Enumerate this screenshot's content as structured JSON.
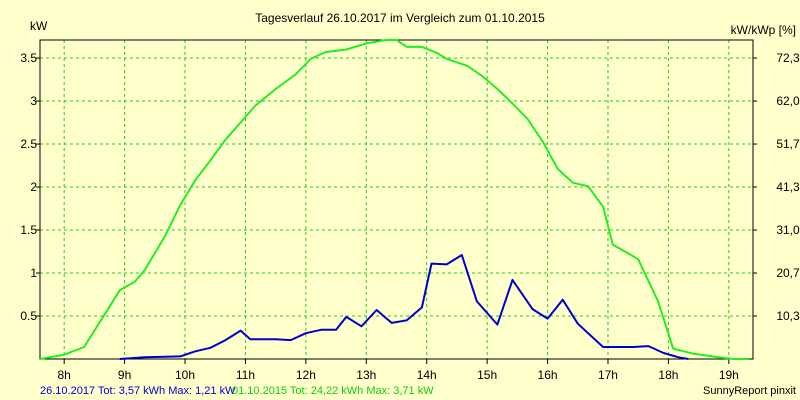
{
  "chart_data": {
    "type": "line",
    "title": "Tagesverlauf 26.10.2017 im Vergleich zum 01.10.2015",
    "ylabel_left": "kW",
    "ylabel_right": "kW/kWp [%]",
    "xlim": [
      7.6,
      19.4
    ],
    "ylim": [
      0,
      3.71
    ],
    "x_ticks": [
      {
        "x": 8,
        "label": "8h"
      },
      {
        "x": 9,
        "label": "9h"
      },
      {
        "x": 10,
        "label": "10h"
      },
      {
        "x": 11,
        "label": "11h"
      },
      {
        "x": 12,
        "label": "12h"
      },
      {
        "x": 13,
        "label": "13h"
      },
      {
        "x": 14,
        "label": "14h"
      },
      {
        "x": 15,
        "label": "15h"
      },
      {
        "x": 16,
        "label": "16h"
      },
      {
        "x": 17,
        "label": "17h"
      },
      {
        "x": 18,
        "label": "18h"
      },
      {
        "x": 19,
        "label": "19h"
      }
    ],
    "y_ticks_left": [
      {
        "y": 0.5,
        "label": "0.5"
      },
      {
        "y": 1,
        "label": "1"
      },
      {
        "y": 1.5,
        "label": "1.5"
      },
      {
        "y": 2,
        "label": "2"
      },
      {
        "y": 2.5,
        "label": "2.5"
      },
      {
        "y": 3,
        "label": "3"
      },
      {
        "y": 3.5,
        "label": "3.5"
      }
    ],
    "y_ticks_right": [
      {
        "y": 0.5,
        "label": "10,3"
      },
      {
        "y": 1,
        "label": "20,7"
      },
      {
        "y": 1.5,
        "label": "31,0"
      },
      {
        "y": 2,
        "label": "41,3"
      },
      {
        "y": 2.5,
        "label": "51,7"
      },
      {
        "y": 3,
        "label": "62,0"
      },
      {
        "y": 3.5,
        "label": "72,3"
      }
    ],
    "grid": true,
    "series": [
      {
        "name": "26.10.2017",
        "color": "#0000cc",
        "x": [
          8.92,
          9.33,
          9.92,
          10.17,
          10.42,
          10.67,
          10.92,
          11.08,
          11.5,
          11.75,
          12.0,
          12.25,
          12.5,
          12.67,
          12.92,
          13.17,
          13.42,
          13.67,
          13.92,
          14.08,
          14.33,
          14.58,
          14.83,
          15.17,
          15.42,
          15.75,
          16.0,
          16.25,
          16.5,
          16.92,
          17.17,
          17.42,
          17.67,
          17.92,
          18.17,
          18.33
        ],
        "y": [
          0.0,
          0.02,
          0.03,
          0.09,
          0.13,
          0.22,
          0.33,
          0.23,
          0.23,
          0.22,
          0.3,
          0.34,
          0.34,
          0.49,
          0.38,
          0.57,
          0.42,
          0.45,
          0.6,
          1.11,
          1.1,
          1.21,
          0.67,
          0.4,
          0.92,
          0.58,
          0.47,
          0.69,
          0.41,
          0.14,
          0.14,
          0.14,
          0.15,
          0.07,
          0.02,
          0.0
        ]
      },
      {
        "name": "01.10.2015",
        "color": "#22ee22",
        "x": [
          7.6,
          8.0,
          8.33,
          8.67,
          8.92,
          9.17,
          9.33,
          9.67,
          9.92,
          10.17,
          10.42,
          10.67,
          10.92,
          11.17,
          11.5,
          11.83,
          12.08,
          12.33,
          12.67,
          13.0,
          13.33,
          13.5,
          13.67,
          13.92,
          14.17,
          14.33,
          14.67,
          14.92,
          15.17,
          15.42,
          15.67,
          15.92,
          16.17,
          16.42,
          16.67,
          16.92,
          17.08,
          17.33,
          17.5,
          17.83,
          18.08,
          18.42,
          18.83,
          19.08,
          19.33
        ],
        "y": [
          0.0,
          0.05,
          0.14,
          0.52,
          0.8,
          0.9,
          1.03,
          1.43,
          1.79,
          2.08,
          2.31,
          2.55,
          2.75,
          2.95,
          3.14,
          3.31,
          3.49,
          3.57,
          3.6,
          3.67,
          3.71,
          3.71,
          3.63,
          3.63,
          3.56,
          3.49,
          3.41,
          3.29,
          3.14,
          2.97,
          2.79,
          2.53,
          2.21,
          2.05,
          2.01,
          1.77,
          1.33,
          1.23,
          1.16,
          0.67,
          0.12,
          0.06,
          0.02,
          0.0,
          0.0
        ]
      }
    ]
  },
  "footer": {
    "left_blue": "26.10.2017 Tot: 3,57 kWh Max: 1,21 kW",
    "left_green": "01.10.2015 Tot: 24,22 kWh Max: 3,71 kW",
    "right": "SunnyReport pinxit"
  }
}
